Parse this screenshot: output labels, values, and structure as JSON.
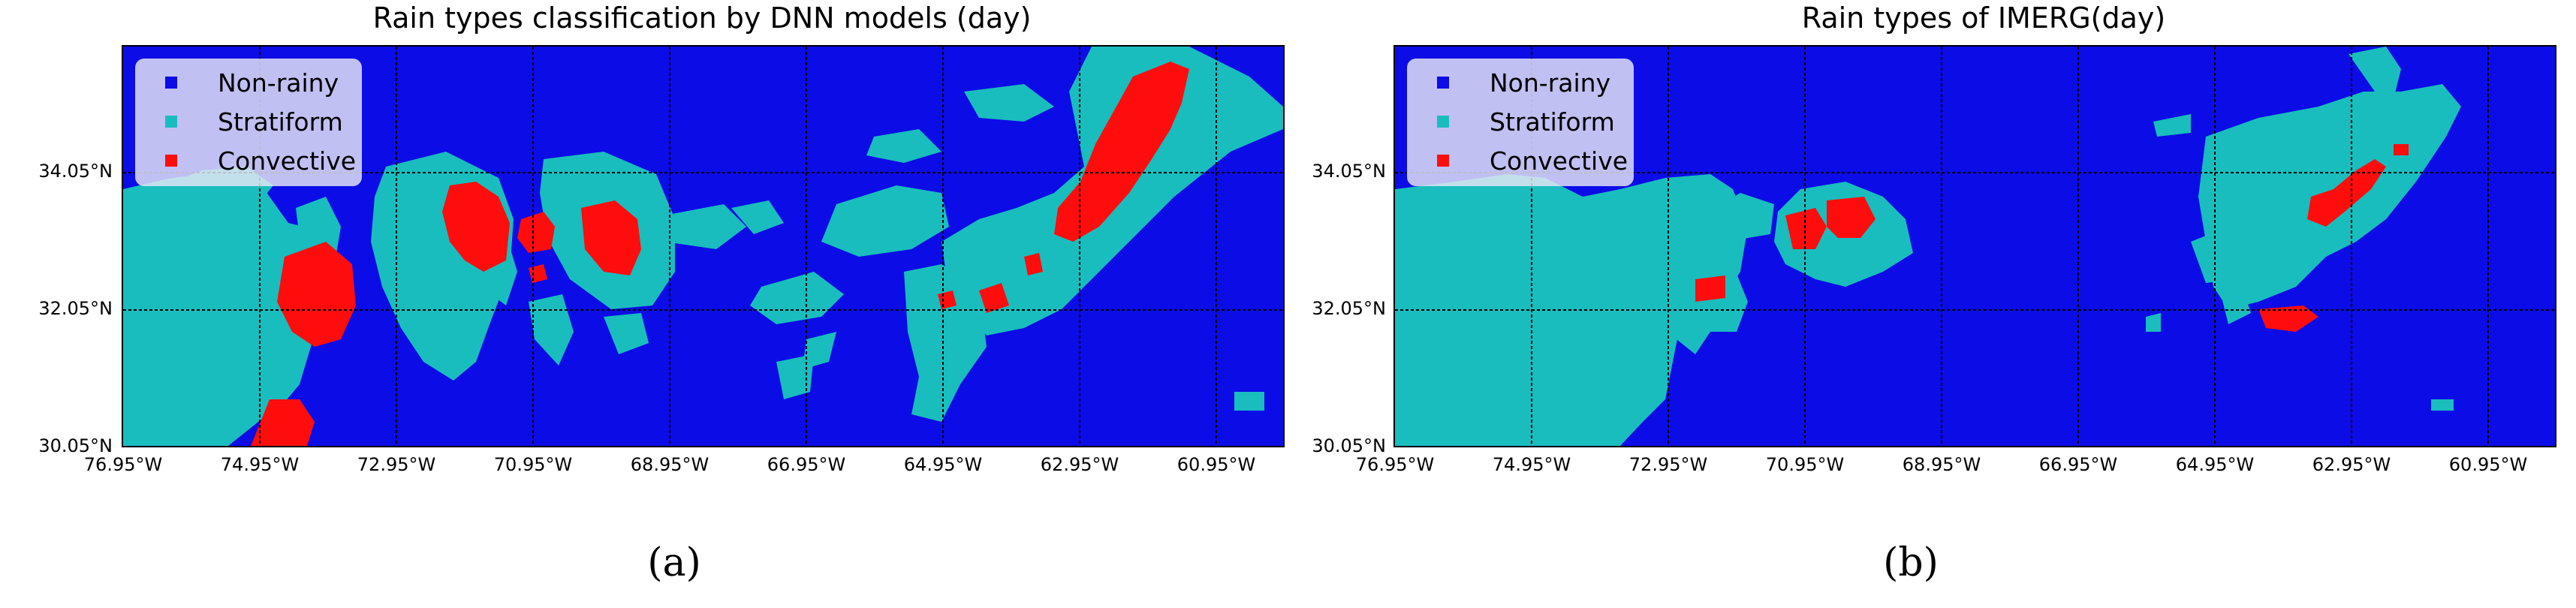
{
  "colors": {
    "non_rainy": "#0c0ce6",
    "stratiform": "#19bdbd",
    "convective": "#ff0d0d",
    "grid": "#000000"
  },
  "panels": [
    {
      "caption": "(a)",
      "title": "Rain types classification by DNN models (day)",
      "legend": [
        "Non-rainy",
        "Stratiform",
        "Convective"
      ],
      "lat_ticks": [
        "34.05°N",
        "32.05°N",
        "30.05°N"
      ],
      "lon_ticks": [
        "76.95°W",
        "74.95°W",
        "72.95°W",
        "70.95°W",
        "68.95°W",
        "66.95°W",
        "64.95°W",
        "62.95°W",
        "60.95°W"
      ]
    },
    {
      "caption": "(b)",
      "title": "Rain types of IMERG(day)",
      "legend": [
        "Non-rainy",
        "Stratiform",
        "Convective"
      ],
      "lat_ticks": [
        "34.05°N",
        "32.05°N",
        "30.05°N"
      ],
      "lon_ticks": [
        "76.95°W",
        "74.95°W",
        "72.95°W",
        "70.95°W",
        "68.95°W",
        "66.95°W",
        "64.95°W",
        "62.95°W",
        "60.95°W"
      ]
    }
  ]
}
